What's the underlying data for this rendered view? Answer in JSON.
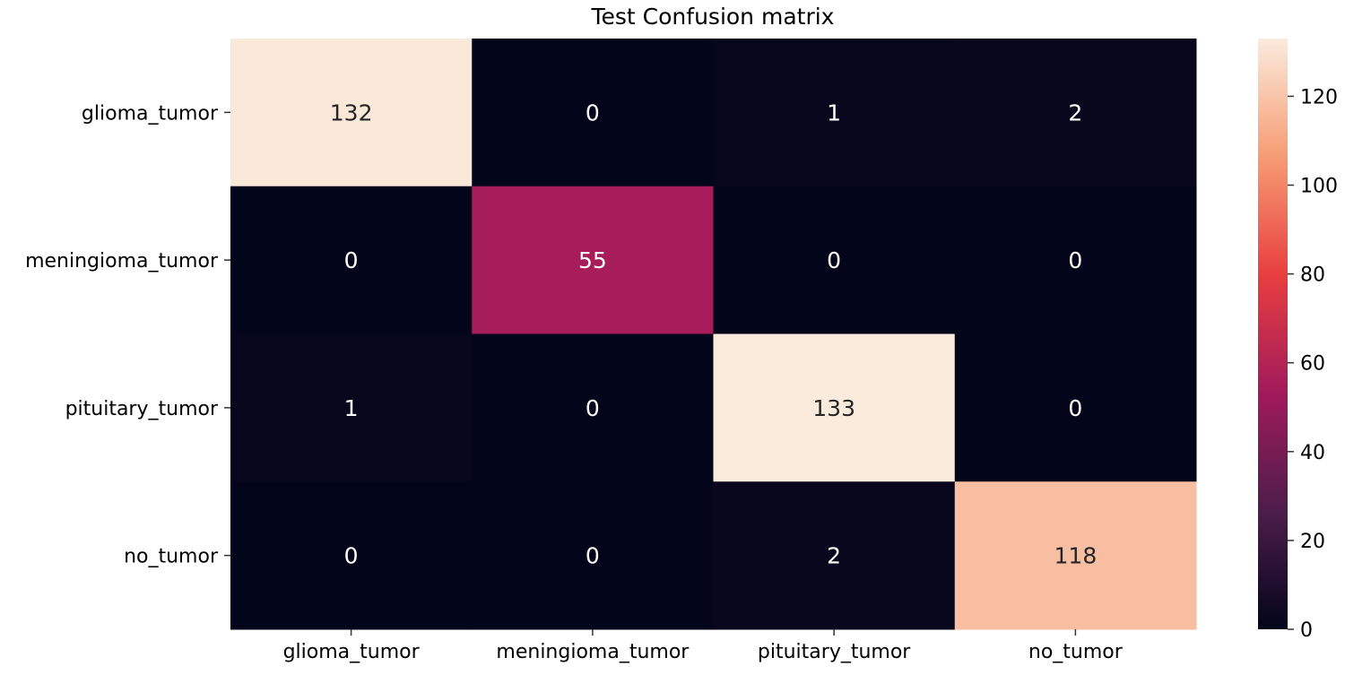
{
  "chart_data": {
    "type": "heatmap",
    "title": "Test Confusion matrix",
    "xlabel": "",
    "ylabel": "",
    "row_labels": [
      "glioma_tumor",
      "meningioma_tumor",
      "pituitary_tumor",
      "no_tumor"
    ],
    "col_labels": [
      "glioma_tumor",
      "meningioma_tumor",
      "pituitary_tumor",
      "no_tumor"
    ],
    "values": [
      [
        132,
        0,
        1,
        2
      ],
      [
        0,
        55,
        0,
        0
      ],
      [
        1,
        0,
        133,
        0
      ],
      [
        0,
        0,
        2,
        118
      ]
    ],
    "colorbar": {
      "min": 0,
      "max": 133,
      "ticks": [
        0,
        20,
        40,
        60,
        80,
        100,
        120
      ],
      "colormap": "rocket",
      "colors": [
        "#03051a",
        "#4c1d4b",
        "#a11a5b",
        "#e83f3f",
        "#f69c73",
        "#faebdd"
      ]
    },
    "grid": false,
    "legend": "colorbar-right"
  }
}
